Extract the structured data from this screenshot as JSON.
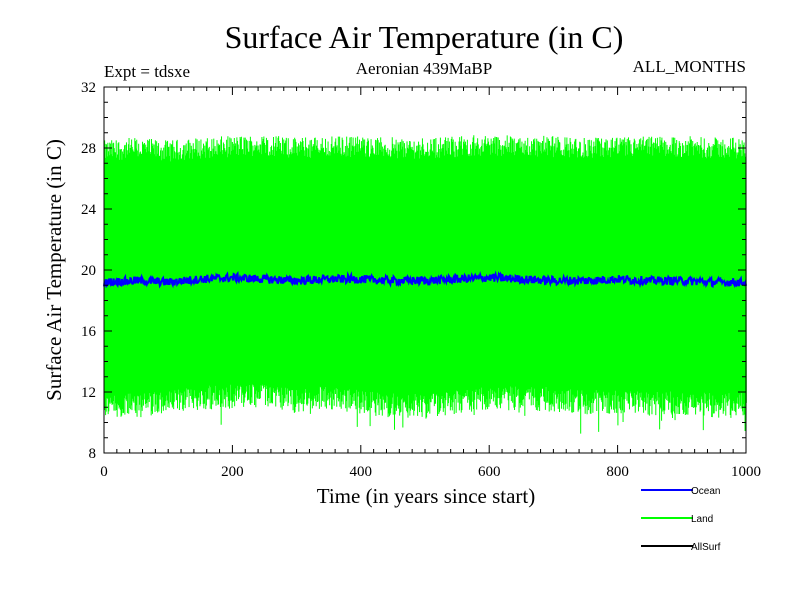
{
  "chart_data": {
    "type": "line",
    "title": "Surface Air Temperature (in C)",
    "subtitle": "Aeronian 439MaBP",
    "experiment_label": "Expt = tdsxe",
    "months_label": "ALL_MONTHS",
    "xlabel": "Time (in years since start)",
    "ylabel": "Surface Air Temperature (in C)",
    "xlim": [
      0,
      1000
    ],
    "ylim": [
      8,
      32
    ],
    "xticks": [
      0,
      200,
      400,
      600,
      800,
      1000
    ],
    "yticks": [
      8,
      12,
      16,
      20,
      24,
      28,
      32
    ],
    "grid": false,
    "legend_position": "bottom-right",
    "series": [
      {
        "name": "Ocean",
        "color": "#0000ff",
        "mean": 19.3,
        "range": [
          18.9,
          19.8
        ],
        "x": [
          0,
          50,
          100,
          150,
          200,
          250,
          300,
          350,
          400,
          450,
          500,
          550,
          600,
          650,
          700,
          750,
          800,
          850,
          900,
          950,
          1000
        ],
        "y": [
          19.2,
          19.3,
          19.2,
          19.4,
          19.5,
          19.4,
          19.3,
          19.4,
          19.4,
          19.3,
          19.3,
          19.4,
          19.5,
          19.4,
          19.3,
          19.3,
          19.4,
          19.3,
          19.3,
          19.2,
          19.2
        ]
      },
      {
        "name": "Land",
        "color": "#00ff00",
        "mean": 19.9,
        "range": [
          9.0,
          29.0
        ],
        "envelope_upper": [
          28.0,
          28.2,
          28.0,
          28.2,
          28.3,
          28.4,
          28.2,
          28.3,
          28.3,
          28.2,
          28.2,
          28.3,
          28.4,
          28.3,
          28.3,
          28.2,
          28.2,
          28.3,
          28.3,
          28.2,
          28.2
        ],
        "envelope_lower": [
          11.0,
          11.0,
          11.2,
          11.5,
          11.6,
          11.6,
          11.3,
          11.5,
          11.2,
          11.0,
          11.0,
          11.2,
          11.5,
          11.5,
          11.4,
          11.2,
          11.3,
          11.1,
          11.2,
          11.0,
          11.1
        ]
      },
      {
        "name": "AllSurf",
        "color": "#000000",
        "x": [],
        "y": []
      }
    ]
  }
}
